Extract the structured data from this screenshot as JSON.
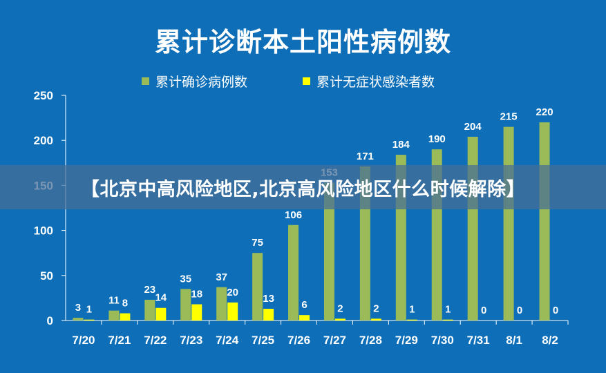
{
  "banner": {
    "text": "【北京中高风险地区,北京高风险地区什么时候解除】"
  },
  "colors": {
    "background": "#0e6fb8",
    "series_confirmed": "#9bbb59",
    "series_asymptomatic": "#ffff00",
    "text": "#ffffff",
    "axis": "#ffffff"
  },
  "chart_data": {
    "type": "bar",
    "title": "累计诊断本土阳性病例数",
    "xlabel": "",
    "ylabel": "",
    "ylim": [
      0,
      250
    ],
    "yticks": [
      0,
      50,
      100,
      150,
      200,
      250
    ],
    "grid": false,
    "legend_position": "top",
    "categories": [
      "7/20",
      "7/21",
      "7/22",
      "7/23",
      "7/24",
      "7/25",
      "7/26",
      "7/27",
      "7/28",
      "7/29",
      "7/30",
      "7/31",
      "8/1",
      "8/2"
    ],
    "series": [
      {
        "name": "累计确诊病例数",
        "color": "#9bbb59",
        "values": [
          3,
          11,
          23,
          35,
          37,
          75,
          106,
          153,
          171,
          184,
          190,
          204,
          215,
          220
        ]
      },
      {
        "name": "累计无症状感染者数",
        "color": "#ffff00",
        "values": [
          1,
          8,
          14,
          18,
          20,
          13,
          6,
          2,
          2,
          1,
          1,
          0,
          0,
          0
        ]
      }
    ]
  }
}
